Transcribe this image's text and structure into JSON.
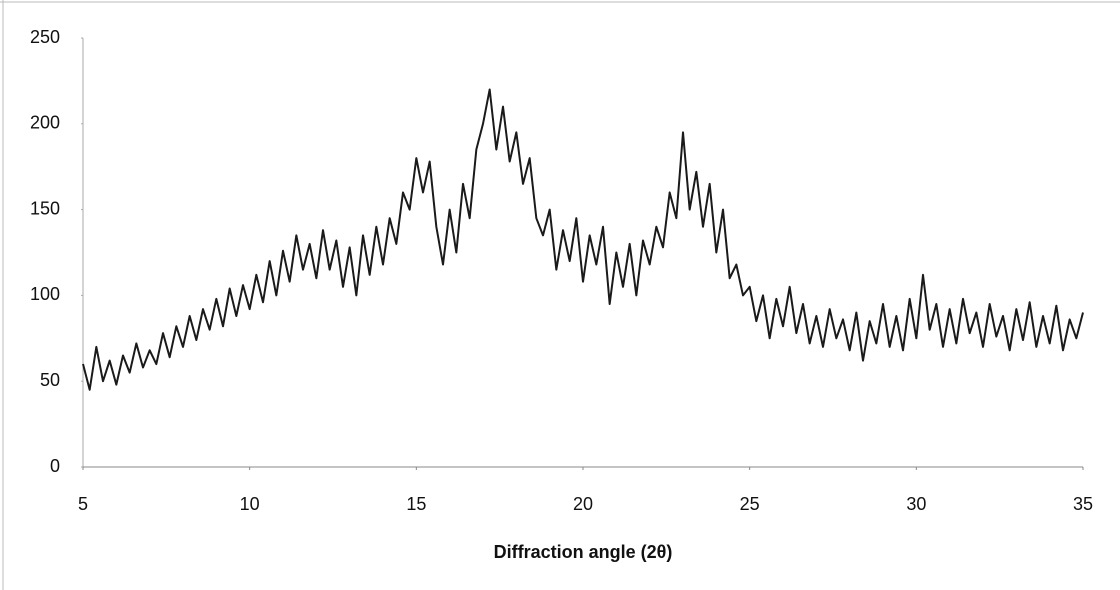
{
  "chart_data": {
    "type": "line",
    "x_label": "Diffraction angle (2θ)",
    "x": [
      5,
      5.2,
      5.4,
      5.6,
      5.8,
      6,
      6.2,
      6.4,
      6.6,
      6.8,
      7,
      7.2,
      7.4,
      7.6,
      7.8,
      8,
      8.2,
      8.4,
      8.6,
      8.8,
      9,
      9.2,
      9.4,
      9.6,
      9.8,
      10,
      10.2,
      10.4,
      10.6,
      10.8,
      11,
      11.2,
      11.4,
      11.6,
      11.8,
      12,
      12.2,
      12.4,
      12.6,
      12.8,
      13,
      13.2,
      13.4,
      13.6,
      13.8,
      14,
      14.2,
      14.4,
      14.6,
      14.8,
      15,
      15.2,
      15.4,
      15.6,
      15.8,
      16,
      16.2,
      16.4,
      16.6,
      16.8,
      17,
      17.2,
      17.4,
      17.6,
      17.8,
      18,
      18.2,
      18.4,
      18.6,
      18.8,
      19,
      19.2,
      19.4,
      19.6,
      19.8,
      20,
      20.2,
      20.4,
      20.6,
      20.8,
      21,
      21.2,
      21.4,
      21.6,
      21.8,
      22,
      22.2,
      22.4,
      22.6,
      22.8,
      23,
      23.2,
      23.4,
      23.6,
      23.8,
      24,
      24.2,
      24.4,
      24.6,
      24.8,
      25,
      25.2,
      25.4,
      25.6,
      25.8,
      26,
      26.2,
      26.4,
      26.6,
      26.8,
      27,
      27.2,
      27.4,
      27.6,
      27.8,
      28,
      28.2,
      28.4,
      28.6,
      28.8,
      29,
      29.2,
      29.4,
      29.6,
      29.8,
      30,
      30.2,
      30.4,
      30.6,
      30.8,
      31,
      31.2,
      31.4,
      31.6,
      31.8,
      32,
      32.2,
      32.4,
      32.6,
      32.8,
      33,
      33.2,
      33.4,
      33.6,
      33.8,
      34,
      34.2,
      34.4,
      34.6,
      34.8,
      35
    ],
    "series": [
      {
        "color": "#1a1a1a",
        "values": [
          60,
          45,
          70,
          50,
          62,
          48,
          65,
          55,
          72,
          58,
          68,
          60,
          78,
          64,
          82,
          70,
          88,
          74,
          92,
          80,
          98,
          82,
          104,
          88,
          106,
          92,
          112,
          96,
          120,
          100,
          126,
          108,
          135,
          115,
          130,
          110,
          138,
          115,
          132,
          105,
          128,
          100,
          135,
          112,
          140,
          118,
          145,
          130,
          160,
          150,
          180,
          160,
          178,
          140,
          118,
          150,
          125,
          165,
          145,
          185,
          200,
          220,
          185,
          210,
          178,
          195,
          165,
          180,
          145,
          135,
          150,
          115,
          138,
          120,
          145,
          108,
          135,
          118,
          140,
          95,
          125,
          105,
          130,
          100,
          132,
          118,
          140,
          128,
          160,
          145,
          195,
          150,
          172,
          140,
          165,
          125,
          150,
          110,
          118,
          100,
          105,
          85,
          100,
          75,
          98,
          82,
          105,
          78,
          95,
          72,
          88,
          70,
          92,
          75,
          86,
          68,
          90,
          62,
          85,
          72,
          95,
          70,
          88,
          68,
          98,
          75,
          112,
          80,
          95,
          70,
          92,
          72,
          98,
          78,
          90,
          70,
          95,
          76,
          88,
          68,
          92,
          74,
          96,
          70,
          88,
          72,
          94,
          68,
          86,
          75,
          90
        ]
      }
    ],
    "xlim": [
      5,
      35
    ],
    "xticks": [
      5,
      10,
      15,
      20,
      25,
      30,
      35
    ],
    "ylim": [
      0,
      250
    ],
    "yticks": [
      0,
      50,
      100,
      150,
      200,
      250
    ]
  }
}
